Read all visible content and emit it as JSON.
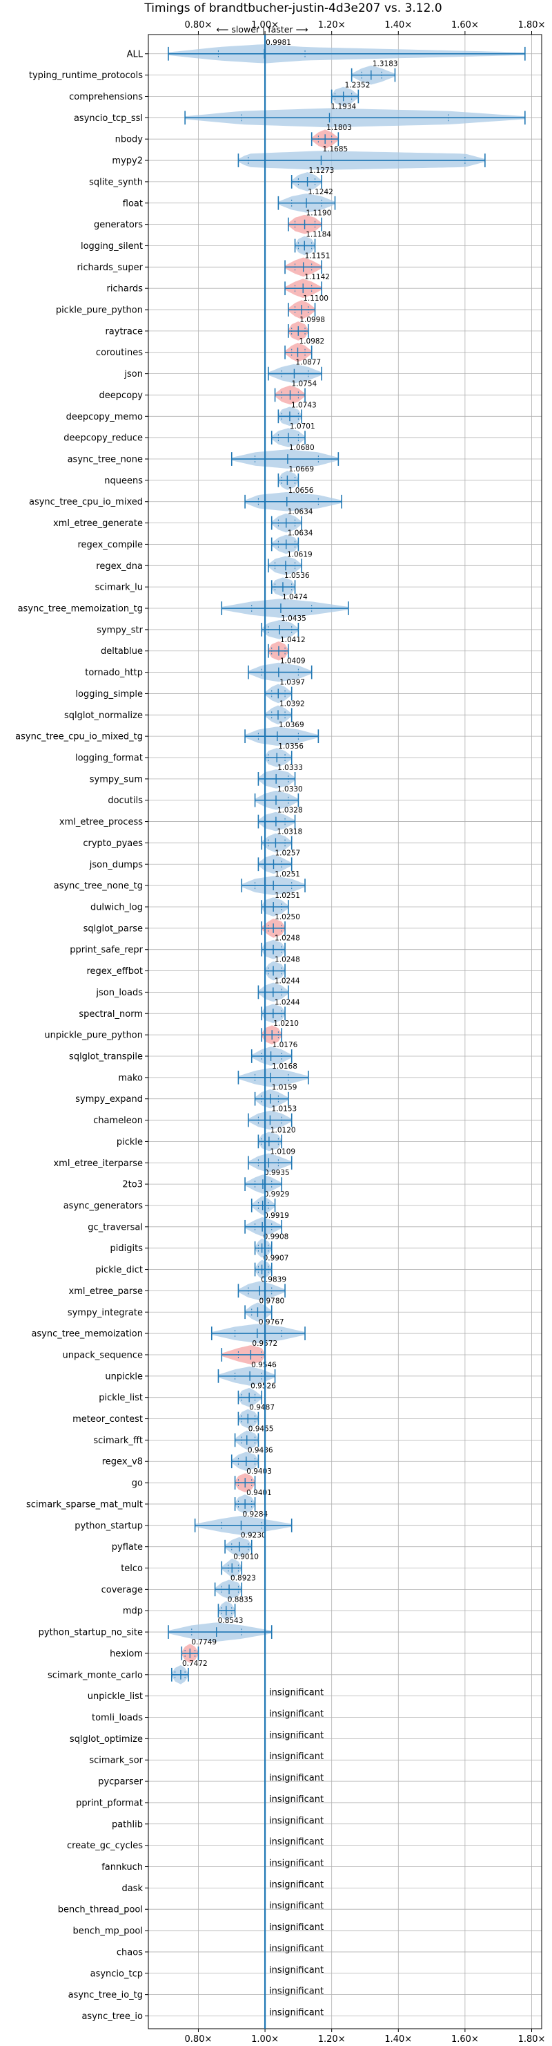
{
  "chart_data": {
    "type": "violin",
    "title": "Timings of brandtbucher-justin-4d3e207 vs. 3.12.0",
    "direction_label": "⟵ slower | faster ⟶",
    "x_ticks": [
      0.8,
      1.0,
      1.2,
      1.4,
      1.6,
      1.8
    ],
    "x_tick_labels": [
      "0.80×",
      "1.00×",
      "1.20×",
      "1.40×",
      "1.60×",
      "1.80×"
    ],
    "xlim": [
      0.65,
      1.83
    ],
    "reference_line": 1.0,
    "insignificant_label": "insignificant",
    "colors": {
      "violin": "#a9c9e6",
      "highlight": "#f4a3a3",
      "line": "#1f77b4",
      "grid": "#b0b0b0"
    },
    "benchmarks": [
      {
        "name": "ALL",
        "label": "0.9981",
        "mean": 0.9981,
        "lo": 0.71,
        "hi": 1.78,
        "iq_lo": 0.86,
        "iq_hi": 1.12,
        "highlight": false
      },
      {
        "name": "typing_runtime_protocols",
        "label": "1.3183",
        "mean": 1.3183,
        "lo": 1.26,
        "hi": 1.39,
        "iq_lo": 1.29,
        "iq_hi": 1.35,
        "highlight": false
      },
      {
        "name": "comprehensions",
        "label": "1.2352",
        "mean": 1.2352,
        "lo": 1.2,
        "hi": 1.28,
        "iq_lo": 1.21,
        "iq_hi": 1.26,
        "highlight": false
      },
      {
        "name": "asyncio_tcp_ssl",
        "label": "1.1934",
        "mean": 1.1934,
        "lo": 0.76,
        "hi": 1.78,
        "iq_lo": 0.93,
        "iq_hi": 1.55,
        "highlight": false
      },
      {
        "name": "nbody",
        "label": "1.1803",
        "mean": 1.1803,
        "lo": 1.14,
        "hi": 1.22,
        "iq_lo": 1.16,
        "iq_hi": 1.2,
        "highlight": true
      },
      {
        "name": "mypy2",
        "label": "1.1685",
        "mean": 1.1685,
        "lo": 0.92,
        "hi": 1.66,
        "iq_lo": 0.95,
        "iq_hi": 1.6,
        "highlight": false
      },
      {
        "name": "sqlite_synth",
        "label": "1.1273",
        "mean": 1.1273,
        "lo": 1.08,
        "hi": 1.17,
        "iq_lo": 1.1,
        "iq_hi": 1.15,
        "highlight": false
      },
      {
        "name": "float",
        "label": "1.1242",
        "mean": 1.1242,
        "lo": 1.04,
        "hi": 1.21,
        "iq_lo": 1.08,
        "iq_hi": 1.17,
        "highlight": false
      },
      {
        "name": "generators",
        "label": "1.1190",
        "mean": 1.119,
        "lo": 1.07,
        "hi": 1.17,
        "iq_lo": 1.09,
        "iq_hi": 1.15,
        "highlight": true
      },
      {
        "name": "logging_silent",
        "label": "1.1184",
        "mean": 1.1184,
        "lo": 1.09,
        "hi": 1.15,
        "iq_lo": 1.1,
        "iq_hi": 1.14,
        "highlight": false
      },
      {
        "name": "richards_super",
        "label": "1.1151",
        "mean": 1.1151,
        "lo": 1.06,
        "hi": 1.17,
        "iq_lo": 1.09,
        "iq_hi": 1.14,
        "highlight": true
      },
      {
        "name": "richards",
        "label": "1.1142",
        "mean": 1.1142,
        "lo": 1.06,
        "hi": 1.17,
        "iq_lo": 1.09,
        "iq_hi": 1.14,
        "highlight": true
      },
      {
        "name": "pickle_pure_python",
        "label": "1.1100",
        "mean": 1.11,
        "lo": 1.07,
        "hi": 1.15,
        "iq_lo": 1.09,
        "iq_hi": 1.13,
        "highlight": true
      },
      {
        "name": "raytrace",
        "label": "1.0998",
        "mean": 1.0998,
        "lo": 1.07,
        "hi": 1.13,
        "iq_lo": 1.08,
        "iq_hi": 1.12,
        "highlight": true
      },
      {
        "name": "coroutines",
        "label": "1.0982",
        "mean": 1.0982,
        "lo": 1.06,
        "hi": 1.14,
        "iq_lo": 1.08,
        "iq_hi": 1.12,
        "highlight": true
      },
      {
        "name": "json",
        "label": "1.0877",
        "mean": 1.0877,
        "lo": 1.01,
        "hi": 1.17,
        "iq_lo": 1.05,
        "iq_hi": 1.13,
        "highlight": false
      },
      {
        "name": "deepcopy",
        "label": "1.0754",
        "mean": 1.0754,
        "lo": 1.03,
        "hi": 1.12,
        "iq_lo": 1.05,
        "iq_hi": 1.1,
        "highlight": true
      },
      {
        "name": "deepcopy_memo",
        "label": "1.0743",
        "mean": 1.0743,
        "lo": 1.04,
        "hi": 1.11,
        "iq_lo": 1.05,
        "iq_hi": 1.1,
        "highlight": false
      },
      {
        "name": "deepcopy_reduce",
        "label": "1.0701",
        "mean": 1.0701,
        "lo": 1.02,
        "hi": 1.12,
        "iq_lo": 1.04,
        "iq_hi": 1.1,
        "highlight": false
      },
      {
        "name": "async_tree_none",
        "label": "1.0680",
        "mean": 1.068,
        "lo": 0.9,
        "hi": 1.22,
        "iq_lo": 0.97,
        "iq_hi": 1.16,
        "highlight": false
      },
      {
        "name": "nqueens",
        "label": "1.0669",
        "mean": 1.0669,
        "lo": 1.04,
        "hi": 1.1,
        "iq_lo": 1.05,
        "iq_hi": 1.09,
        "highlight": false
      },
      {
        "name": "async_tree_cpu_io_mixed",
        "label": "1.0656",
        "mean": 1.0656,
        "lo": 0.94,
        "hi": 1.23,
        "iq_lo": 0.98,
        "iq_hi": 1.16,
        "highlight": false
      },
      {
        "name": "xml_etree_generate",
        "label": "1.0634",
        "mean": 1.0634,
        "lo": 1.02,
        "hi": 1.11,
        "iq_lo": 1.04,
        "iq_hi": 1.09,
        "highlight": false
      },
      {
        "name": "regex_compile",
        "label": "1.0634",
        "mean": 1.0634,
        "lo": 1.02,
        "hi": 1.1,
        "iq_lo": 1.04,
        "iq_hi": 1.09,
        "highlight": false
      },
      {
        "name": "regex_dna",
        "label": "1.0619",
        "mean": 1.0619,
        "lo": 1.01,
        "hi": 1.11,
        "iq_lo": 1.03,
        "iq_hi": 1.09,
        "highlight": false
      },
      {
        "name": "scimark_lu",
        "label": "1.0536",
        "mean": 1.0536,
        "lo": 1.02,
        "hi": 1.09,
        "iq_lo": 1.03,
        "iq_hi": 1.08,
        "highlight": false
      },
      {
        "name": "async_tree_memoization_tg",
        "label": "1.0474",
        "mean": 1.0474,
        "lo": 0.87,
        "hi": 1.25,
        "iq_lo": 0.96,
        "iq_hi": 1.14,
        "highlight": false
      },
      {
        "name": "sympy_str",
        "label": "1.0435",
        "mean": 1.0435,
        "lo": 0.99,
        "hi": 1.1,
        "iq_lo": 1.01,
        "iq_hi": 1.08,
        "highlight": false
      },
      {
        "name": "deltablue",
        "label": "1.0412",
        "mean": 1.0412,
        "lo": 1.01,
        "hi": 1.07,
        "iq_lo": 1.02,
        "iq_hi": 1.06,
        "highlight": true
      },
      {
        "name": "tornado_http",
        "label": "1.0409",
        "mean": 1.0409,
        "lo": 0.95,
        "hi": 1.14,
        "iq_lo": 0.99,
        "iq_hi": 1.1,
        "highlight": false
      },
      {
        "name": "logging_simple",
        "label": "1.0397",
        "mean": 1.0397,
        "lo": 1.0,
        "hi": 1.08,
        "iq_lo": 1.02,
        "iq_hi": 1.06,
        "highlight": false
      },
      {
        "name": "sqlglot_normalize",
        "label": "1.0392",
        "mean": 1.0392,
        "lo": 1.0,
        "hi": 1.08,
        "iq_lo": 1.02,
        "iq_hi": 1.06,
        "highlight": false
      },
      {
        "name": "async_tree_cpu_io_mixed_tg",
        "label": "1.0369",
        "mean": 1.0369,
        "lo": 0.94,
        "hi": 1.16,
        "iq_lo": 0.98,
        "iq_hi": 1.1,
        "highlight": false
      },
      {
        "name": "logging_format",
        "label": "1.0356",
        "mean": 1.0356,
        "lo": 1.0,
        "hi": 1.08,
        "iq_lo": 1.01,
        "iq_hi": 1.06,
        "highlight": false
      },
      {
        "name": "sympy_sum",
        "label": "1.0333",
        "mean": 1.0333,
        "lo": 0.98,
        "hi": 1.09,
        "iq_lo": 1.0,
        "iq_hi": 1.07,
        "highlight": false
      },
      {
        "name": "docutils",
        "label": "1.0330",
        "mean": 1.033,
        "lo": 0.97,
        "hi": 1.1,
        "iq_lo": 1.0,
        "iq_hi": 1.07,
        "highlight": false
      },
      {
        "name": "xml_etree_process",
        "label": "1.0328",
        "mean": 1.0328,
        "lo": 0.98,
        "hi": 1.09,
        "iq_lo": 1.0,
        "iq_hi": 1.06,
        "highlight": false
      },
      {
        "name": "crypto_pyaes",
        "label": "1.0318",
        "mean": 1.0318,
        "lo": 0.99,
        "hi": 1.08,
        "iq_lo": 1.01,
        "iq_hi": 1.06,
        "highlight": false
      },
      {
        "name": "json_dumps",
        "label": "1.0257",
        "mean": 1.0257,
        "lo": 0.98,
        "hi": 1.08,
        "iq_lo": 1.0,
        "iq_hi": 1.05,
        "highlight": false
      },
      {
        "name": "async_tree_none_tg",
        "label": "1.0251",
        "mean": 1.0251,
        "lo": 0.93,
        "hi": 1.12,
        "iq_lo": 0.97,
        "iq_hi": 1.08,
        "highlight": false
      },
      {
        "name": "dulwich_log",
        "label": "1.0251",
        "mean": 1.0251,
        "lo": 0.99,
        "hi": 1.07,
        "iq_lo": 1.0,
        "iq_hi": 1.05,
        "highlight": false
      },
      {
        "name": "sqlglot_parse",
        "label": "1.0250",
        "mean": 1.025,
        "lo": 0.99,
        "hi": 1.06,
        "iq_lo": 1.01,
        "iq_hi": 1.05,
        "highlight": true
      },
      {
        "name": "pprint_safe_repr",
        "label": "1.0248",
        "mean": 1.0248,
        "lo": 0.99,
        "hi": 1.06,
        "iq_lo": 1.0,
        "iq_hi": 1.05,
        "highlight": false
      },
      {
        "name": "regex_effbot",
        "label": "1.0248",
        "mean": 1.0248,
        "lo": 1.0,
        "hi": 1.06,
        "iq_lo": 1.01,
        "iq_hi": 1.05,
        "highlight": false
      },
      {
        "name": "json_loads",
        "label": "1.0244",
        "mean": 1.0244,
        "lo": 0.98,
        "hi": 1.07,
        "iq_lo": 1.0,
        "iq_hi": 1.05,
        "highlight": false
      },
      {
        "name": "spectral_norm",
        "label": "1.0244",
        "mean": 1.0244,
        "lo": 0.99,
        "hi": 1.06,
        "iq_lo": 1.0,
        "iq_hi": 1.05,
        "highlight": false
      },
      {
        "name": "unpickle_pure_python",
        "label": "1.0210",
        "mean": 1.021,
        "lo": 0.99,
        "hi": 1.05,
        "iq_lo": 1.0,
        "iq_hi": 1.04,
        "highlight": true
      },
      {
        "name": "sqlglot_transpile",
        "label": "1.0176",
        "mean": 1.0176,
        "lo": 0.96,
        "hi": 1.08,
        "iq_lo": 0.99,
        "iq_hi": 1.05,
        "highlight": false
      },
      {
        "name": "mako",
        "label": "1.0168",
        "mean": 1.0168,
        "lo": 0.92,
        "hi": 1.13,
        "iq_lo": 0.97,
        "iq_hi": 1.07,
        "highlight": false
      },
      {
        "name": "sympy_expand",
        "label": "1.0159",
        "mean": 1.0159,
        "lo": 0.97,
        "hi": 1.07,
        "iq_lo": 0.99,
        "iq_hi": 1.04,
        "highlight": false
      },
      {
        "name": "chameleon",
        "label": "1.0153",
        "mean": 1.0153,
        "lo": 0.95,
        "hi": 1.08,
        "iq_lo": 0.98,
        "iq_hi": 1.05,
        "highlight": false
      },
      {
        "name": "pickle",
        "label": "1.0120",
        "mean": 1.012,
        "lo": 0.98,
        "hi": 1.05,
        "iq_lo": 0.99,
        "iq_hi": 1.04,
        "highlight": false
      },
      {
        "name": "xml_etree_iterparse",
        "label": "1.0109",
        "mean": 1.0109,
        "lo": 0.95,
        "hi": 1.08,
        "iq_lo": 0.98,
        "iq_hi": 1.04,
        "highlight": false
      },
      {
        "name": "2to3",
        "label": "0.9935",
        "mean": 0.9935,
        "lo": 0.94,
        "hi": 1.05,
        "iq_lo": 0.97,
        "iq_hi": 1.02,
        "highlight": false
      },
      {
        "name": "async_generators",
        "label": "0.9929",
        "mean": 0.9929,
        "lo": 0.96,
        "hi": 1.03,
        "iq_lo": 0.98,
        "iq_hi": 1.01,
        "highlight": false
      },
      {
        "name": "gc_traversal",
        "label": "0.9919",
        "mean": 0.9919,
        "lo": 0.94,
        "hi": 1.05,
        "iq_lo": 0.97,
        "iq_hi": 1.02,
        "highlight": false
      },
      {
        "name": "pidigits",
        "label": "0.9908",
        "mean": 0.9908,
        "lo": 0.97,
        "hi": 1.02,
        "iq_lo": 0.98,
        "iq_hi": 1.01,
        "highlight": false
      },
      {
        "name": "pickle_dict",
        "label": "0.9907",
        "mean": 0.9907,
        "lo": 0.97,
        "hi": 1.02,
        "iq_lo": 0.98,
        "iq_hi": 1.01,
        "highlight": false
      },
      {
        "name": "xml_etree_parse",
        "label": "0.9839",
        "mean": 0.9839,
        "lo": 0.92,
        "hi": 1.06,
        "iq_lo": 0.95,
        "iq_hi": 1.02,
        "highlight": false
      },
      {
        "name": "sympy_integrate",
        "label": "0.9780",
        "mean": 0.978,
        "lo": 0.94,
        "hi": 1.02,
        "iq_lo": 0.96,
        "iq_hi": 1.0,
        "highlight": false
      },
      {
        "name": "async_tree_memoization",
        "label": "0.9767",
        "mean": 0.9767,
        "lo": 0.84,
        "hi": 1.12,
        "iq_lo": 0.91,
        "iq_hi": 1.05,
        "highlight": false
      },
      {
        "name": "unpack_sequence",
        "label": "0.9572",
        "mean": 0.9572,
        "lo": 0.87,
        "hi": 1.0,
        "iq_lo": 0.92,
        "iq_hi": 0.99,
        "highlight": true
      },
      {
        "name": "unpickle",
        "label": "0.9546",
        "mean": 0.9546,
        "lo": 0.86,
        "hi": 1.03,
        "iq_lo": 0.91,
        "iq_hi": 0.99,
        "highlight": false
      },
      {
        "name": "pickle_list",
        "label": "0.9526",
        "mean": 0.9526,
        "lo": 0.92,
        "hi": 0.99,
        "iq_lo": 0.93,
        "iq_hi": 0.97,
        "highlight": false
      },
      {
        "name": "meteor_contest",
        "label": "0.9487",
        "mean": 0.9487,
        "lo": 0.92,
        "hi": 0.98,
        "iq_lo": 0.93,
        "iq_hi": 0.97,
        "highlight": false
      },
      {
        "name": "scimark_fft",
        "label": "0.9455",
        "mean": 0.9455,
        "lo": 0.91,
        "hi": 0.98,
        "iq_lo": 0.93,
        "iq_hi": 0.97,
        "highlight": false
      },
      {
        "name": "regex_v8",
        "label": "0.9436",
        "mean": 0.9436,
        "lo": 0.9,
        "hi": 0.98,
        "iq_lo": 0.92,
        "iq_hi": 0.97,
        "highlight": false
      },
      {
        "name": "go",
        "label": "0.9403",
        "mean": 0.9403,
        "lo": 0.91,
        "hi": 0.97,
        "iq_lo": 0.92,
        "iq_hi": 0.96,
        "highlight": true
      },
      {
        "name": "scimark_sparse_mat_mult",
        "label": "0.9401",
        "mean": 0.9401,
        "lo": 0.91,
        "hi": 0.97,
        "iq_lo": 0.92,
        "iq_hi": 0.96,
        "highlight": false
      },
      {
        "name": "python_startup",
        "label": "0.9284",
        "mean": 0.9284,
        "lo": 0.79,
        "hi": 1.08,
        "iq_lo": 0.87,
        "iq_hi": 0.99,
        "highlight": false
      },
      {
        "name": "pyflate",
        "label": "0.9230",
        "mean": 0.923,
        "lo": 0.88,
        "hi": 0.96,
        "iq_lo": 0.9,
        "iq_hi": 0.95,
        "highlight": false
      },
      {
        "name": "telco",
        "label": "0.9010",
        "mean": 0.901,
        "lo": 0.87,
        "hi": 0.93,
        "iq_lo": 0.89,
        "iq_hi": 0.92,
        "highlight": false
      },
      {
        "name": "coverage",
        "label": "0.8923",
        "mean": 0.8923,
        "lo": 0.85,
        "hi": 0.93,
        "iq_lo": 0.87,
        "iq_hi": 0.92,
        "highlight": false
      },
      {
        "name": "mdp",
        "label": "0.8835",
        "mean": 0.8835,
        "lo": 0.86,
        "hi": 0.91,
        "iq_lo": 0.87,
        "iq_hi": 0.9,
        "highlight": false
      },
      {
        "name": "python_startup_no_site",
        "label": "0.8543",
        "mean": 0.8543,
        "lo": 0.71,
        "hi": 1.02,
        "iq_lo": 0.78,
        "iq_hi": 0.93,
        "highlight": false
      },
      {
        "name": "hexiom",
        "label": "0.7749",
        "mean": 0.7749,
        "lo": 0.75,
        "hi": 0.8,
        "iq_lo": 0.76,
        "iq_hi": 0.79,
        "highlight": true
      },
      {
        "name": "scimark_monte_carlo",
        "label": "0.7472",
        "mean": 0.7472,
        "lo": 0.72,
        "hi": 0.77,
        "iq_lo": 0.73,
        "iq_hi": 0.76,
        "highlight": false
      },
      {
        "name": "unpickle_list",
        "insignificant": true
      },
      {
        "name": "tomli_loads",
        "insignificant": true
      },
      {
        "name": "sqlglot_optimize",
        "insignificant": true
      },
      {
        "name": "scimark_sor",
        "insignificant": true
      },
      {
        "name": "pycparser",
        "insignificant": true
      },
      {
        "name": "pprint_pformat",
        "insignificant": true
      },
      {
        "name": "pathlib",
        "insignificant": true
      },
      {
        "name": "create_gc_cycles",
        "insignificant": true
      },
      {
        "name": "fannkuch",
        "insignificant": true
      },
      {
        "name": "dask",
        "insignificant": true
      },
      {
        "name": "bench_thread_pool",
        "insignificant": true
      },
      {
        "name": "bench_mp_pool",
        "insignificant": true
      },
      {
        "name": "chaos",
        "insignificant": true
      },
      {
        "name": "asyncio_tcp",
        "insignificant": true
      },
      {
        "name": "async_tree_io_tg",
        "insignificant": true
      },
      {
        "name": "async_tree_io",
        "insignificant": true
      }
    ]
  }
}
